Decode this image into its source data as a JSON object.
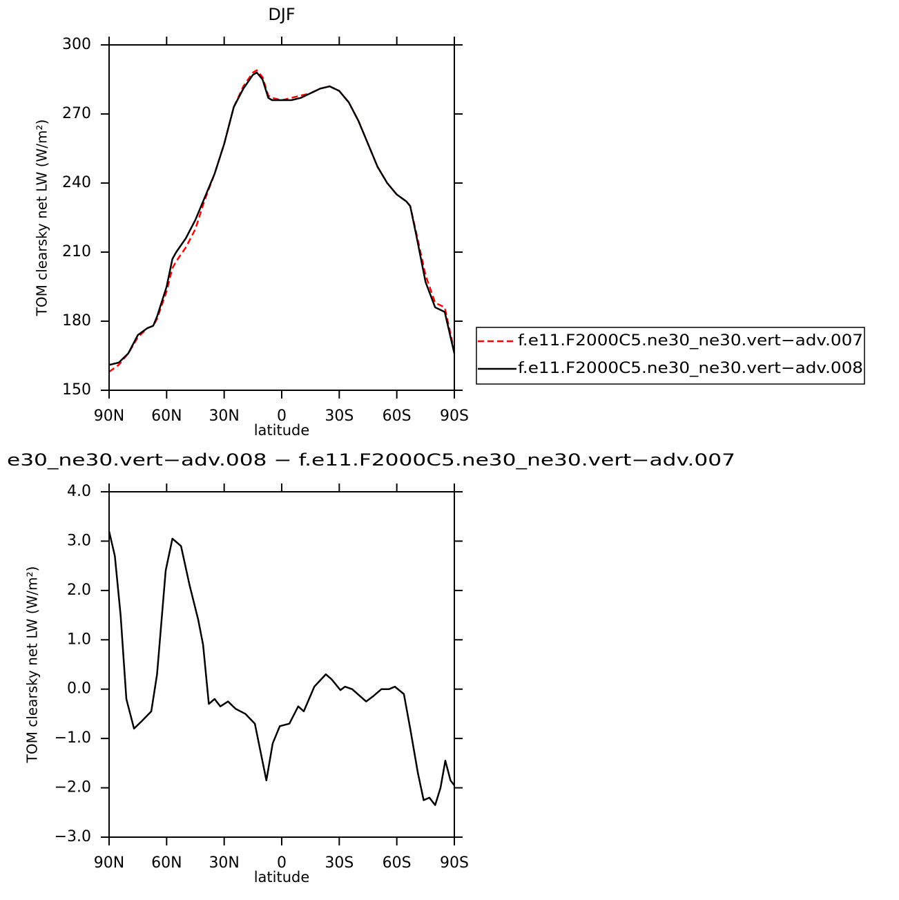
{
  "chart_data": [
    {
      "type": "line",
      "title": "DJF",
      "ylabel": "TOM clearsky net LW (W/m²)",
      "xlabel": "latitude",
      "x": [
        90,
        85,
        80,
        75,
        70,
        67,
        65,
        60,
        57,
        55,
        50,
        45,
        40,
        35,
        30,
        25,
        20,
        15,
        13,
        10,
        7,
        5,
        0,
        -5,
        -10,
        -15,
        -20,
        -25,
        -30,
        -35,
        -40,
        -45,
        -50,
        -55,
        -60,
        -65,
        -67,
        -70,
        -75,
        -80,
        -85,
        -90
      ],
      "series": [
        {
          "name": "f.e11.F2000C5.ne30_ne30.vert−adv.007",
          "color": "#ff0000",
          "dashed": true,
          "values": [
            158,
            161,
            166,
            173,
            177,
            178,
            181,
            193,
            203,
            206,
            212,
            220,
            233,
            244,
            257,
            273,
            282,
            288,
            289,
            286,
            278,
            277,
            276,
            277,
            278,
            279,
            281,
            282,
            280,
            275,
            267,
            257,
            247,
            240,
            235,
            232,
            230,
            219,
            200,
            188,
            186,
            167
          ]
        },
        {
          "name": "f.e11.F2000C5.ne30_ne30.vert−adv.008",
          "color": "#000000",
          "dashed": false,
          "values": [
            161,
            162,
            166,
            174,
            177,
            178,
            182,
            195,
            207,
            210,
            216,
            224,
            234,
            244,
            257,
            273,
            281,
            287,
            288,
            285,
            277,
            276,
            276,
            276,
            277,
            279,
            281,
            282,
            280,
            275,
            267,
            257,
            247,
            240,
            235,
            232,
            230,
            218,
            197,
            186,
            184,
            166
          ]
        }
      ],
      "xlim": [
        90,
        -90
      ],
      "xticks": [
        {
          "value": 90,
          "label": "90N"
        },
        {
          "value": 60,
          "label": "60N"
        },
        {
          "value": 30,
          "label": "30N"
        },
        0,
        {
          "value": -30,
          "label": "30S"
        },
        {
          "value": -60,
          "label": "60S"
        },
        {
          "value": -90,
          "label": "90S"
        }
      ],
      "ylim": [
        150,
        300
      ],
      "yticks": [
        150,
        180,
        210,
        240,
        270,
        300
      ],
      "legend": "outside-right"
    },
    {
      "type": "line",
      "title": "e30_ne30.vert−adv.008 − f.e11.F2000C5.ne30_ne30.vert−adv.007",
      "ylabel": "TOM clearsky net LW (W/m²)",
      "xlabel": "latitude",
      "x": [
        90,
        87,
        84,
        81,
        77,
        73,
        68,
        65,
        60.5,
        57,
        52.5,
        48,
        43.5,
        41,
        38,
        35,
        32,
        28,
        24,
        19,
        14,
        8,
        4.7,
        1,
        -4,
        -8.6,
        -11.5,
        -17,
        -23,
        -26,
        -30.6,
        -33,
        -36.7,
        -44,
        -47.5,
        -52,
        -56,
        -59,
        -63.7,
        -67,
        -71,
        -74,
        -77,
        -80,
        -82.8,
        -85.3,
        -88,
        -90
      ],
      "series": [
        {
          "color": "#000000",
          "dashed": false,
          "values": [
            3.2,
            2.7,
            1.5,
            -0.2,
            -0.8,
            -0.65,
            -0.45,
            0.3,
            2.4,
            3.05,
            2.9,
            2.1,
            1.4,
            0.9,
            -0.3,
            -0.2,
            -0.35,
            -0.25,
            -0.4,
            -0.5,
            -0.7,
            -1.85,
            -1.1,
            -0.75,
            -0.7,
            -0.35,
            -0.45,
            0.05,
            0.3,
            0.2,
            -0.02,
            0.05,
            0.0,
            -0.25,
            -0.15,
            0.0,
            0.0,
            0.05,
            -0.1,
            -0.8,
            -1.7,
            -2.25,
            -2.2,
            -2.35,
            -2.0,
            -1.45,
            -1.85,
            -1.95
          ]
        }
      ],
      "xlim": [
        90,
        -90
      ],
      "xticks": [
        {
          "value": 90,
          "label": "90N"
        },
        {
          "value": 60,
          "label": "60N"
        },
        {
          "value": 30,
          "label": "30N"
        },
        0,
        {
          "value": -30,
          "label": "30S"
        },
        {
          "value": -60,
          "label": "60S"
        },
        {
          "value": -90,
          "label": "90S"
        }
      ],
      "ylim": [
        -3,
        4
      ],
      "yticks": [
        {
          "value": -3,
          "label": "−3.0"
        },
        {
          "value": -2,
          "label": "−2.0"
        },
        {
          "value": -1,
          "label": "−1.0"
        },
        {
          "value": 0,
          "label": "0.0"
        },
        {
          "value": 1,
          "label": "1.0"
        },
        {
          "value": 2,
          "label": "2.0"
        },
        {
          "value": 3,
          "label": "3.0"
        },
        {
          "value": 4,
          "label": "4.0"
        }
      ]
    }
  ]
}
